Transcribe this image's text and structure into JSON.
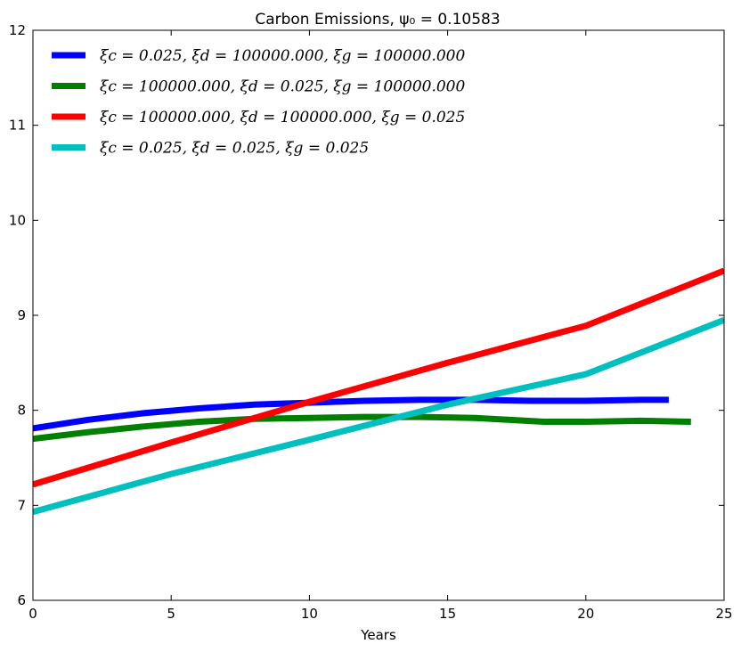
{
  "chart_data": {
    "type": "line",
    "title": "Carbon Emissions, ψ₀ = 0.10583",
    "xlabel": "Years",
    "ylabel": "",
    "xlim": [
      0,
      25
    ],
    "ylim": [
      6,
      12
    ],
    "xticks": [
      0,
      5,
      10,
      15,
      20,
      25
    ],
    "yticks": [
      6,
      7,
      8,
      9,
      10,
      11,
      12
    ],
    "grid": false,
    "legend_position": "top-left",
    "series": [
      {
        "name": "ξc = 0.025, ξd = 100000.000, ξg = 100000.000",
        "color": "#0000ff",
        "x": [
          0,
          2,
          4,
          6,
          8,
          10,
          12,
          14,
          16,
          18,
          20,
          22,
          23
        ],
        "y": [
          7.81,
          7.9,
          7.97,
          8.02,
          8.06,
          8.08,
          8.1,
          8.11,
          8.11,
          8.1,
          8.1,
          8.11,
          8.11
        ]
      },
      {
        "name": "ξc = 100000.000, ξd = 0.025, ξg = 100000.000",
        "color": "#008000",
        "x": [
          0,
          2,
          4,
          6,
          8,
          10,
          12,
          14,
          16,
          18.5,
          20,
          22,
          23.8
        ],
        "y": [
          7.7,
          7.77,
          7.83,
          7.88,
          7.91,
          7.92,
          7.93,
          7.93,
          7.92,
          7.88,
          7.88,
          7.89,
          7.88
        ]
      },
      {
        "name": "ξc = 100000.000, ξd = 100000.000, ξg = 0.025",
        "color": "#ff0000",
        "x": [
          0,
          5,
          10,
          15,
          20,
          25
        ],
        "y": [
          7.22,
          7.66,
          8.09,
          8.5,
          8.89,
          9.47
        ]
      },
      {
        "name": "ξc = 0.025, ξd = 0.025, ξg = 0.025",
        "color": "#00bfbf",
        "x": [
          0,
          5,
          10,
          15,
          20,
          25
        ],
        "y": [
          6.93,
          7.33,
          7.69,
          8.06,
          8.38,
          8.95
        ]
      }
    ]
  }
}
